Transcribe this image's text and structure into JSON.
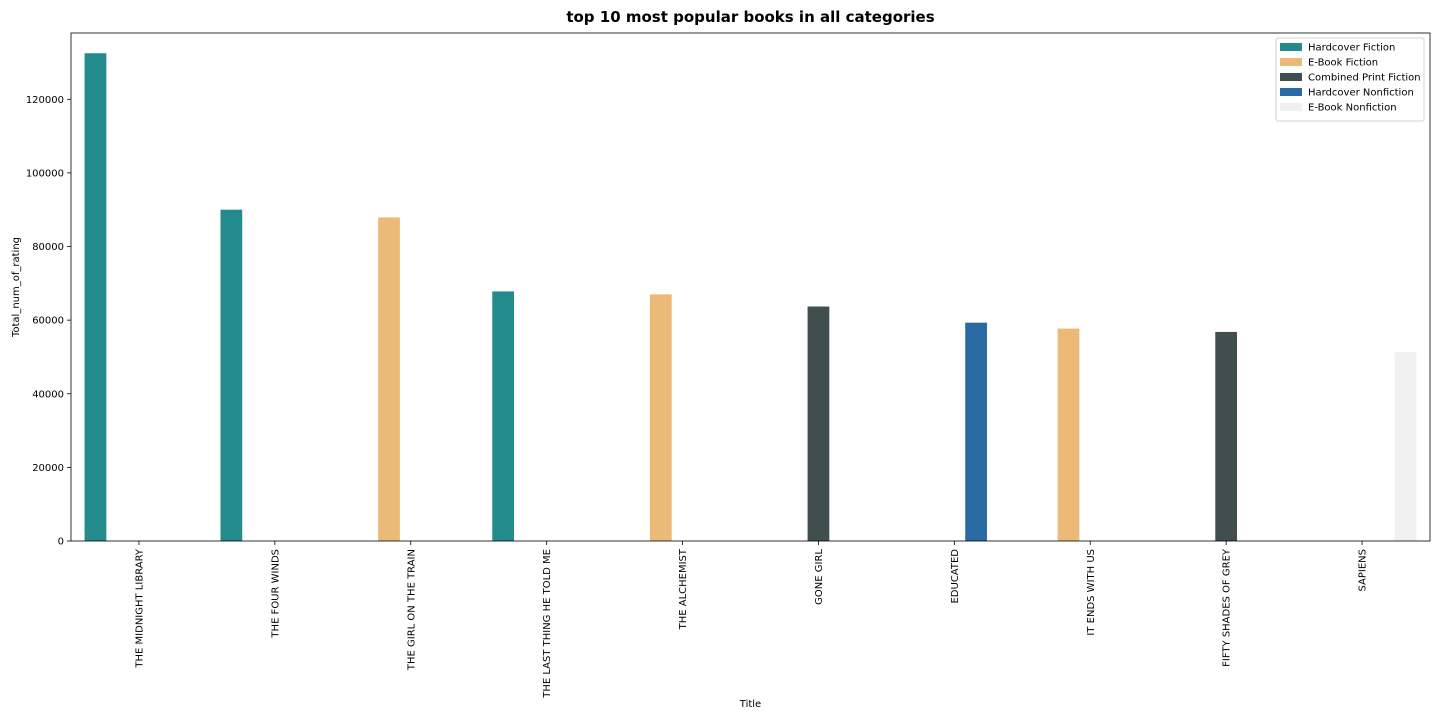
{
  "chart_data": {
    "type": "bar",
    "title": "top 10 most popular books in all categories",
    "xlabel": "Title",
    "ylabel": "Total_num_of_rating",
    "ylim": [
      0,
      138000
    ],
    "yticks": [
      0,
      20000,
      40000,
      60000,
      80000,
      100000,
      120000
    ],
    "grid": false,
    "legend_position": "top-right",
    "categories": [
      "THE MIDNIGHT LIBRARY",
      "THE FOUR WINDS",
      "THE GIRL ON THE TRAIN",
      "THE LAST THING HE TOLD ME",
      "THE ALCHEMIST",
      "GONE GIRL",
      "EDUCATED",
      "IT ENDS WITH US",
      "FIFTY SHADES OF GREY",
      "SAPIENS"
    ],
    "series": [
      {
        "name": "Hardcover Fiction",
        "color": "#238b8b",
        "values": [
          132500,
          90000,
          null,
          67800,
          null,
          null,
          null,
          null,
          null,
          null
        ]
      },
      {
        "name": "E-Book Fiction",
        "color": "#ebba78",
        "values": [
          null,
          null,
          87900,
          null,
          67000,
          null,
          null,
          57700,
          null,
          null
        ]
      },
      {
        "name": "Combined Print Fiction",
        "color": "#404e4d",
        "values": [
          null,
          null,
          null,
          null,
          null,
          63700,
          null,
          null,
          56800,
          null
        ]
      },
      {
        "name": "Hardcover Nonfiction",
        "color": "#2a6aa3",
        "values": [
          null,
          null,
          null,
          null,
          null,
          null,
          59300,
          null,
          null,
          null
        ]
      },
      {
        "name": "E-Book Nonfiction",
        "color": "#f1f1f1",
        "values": [
          null,
          null,
          null,
          null,
          null,
          null,
          null,
          null,
          null,
          51300
        ]
      }
    ]
  }
}
